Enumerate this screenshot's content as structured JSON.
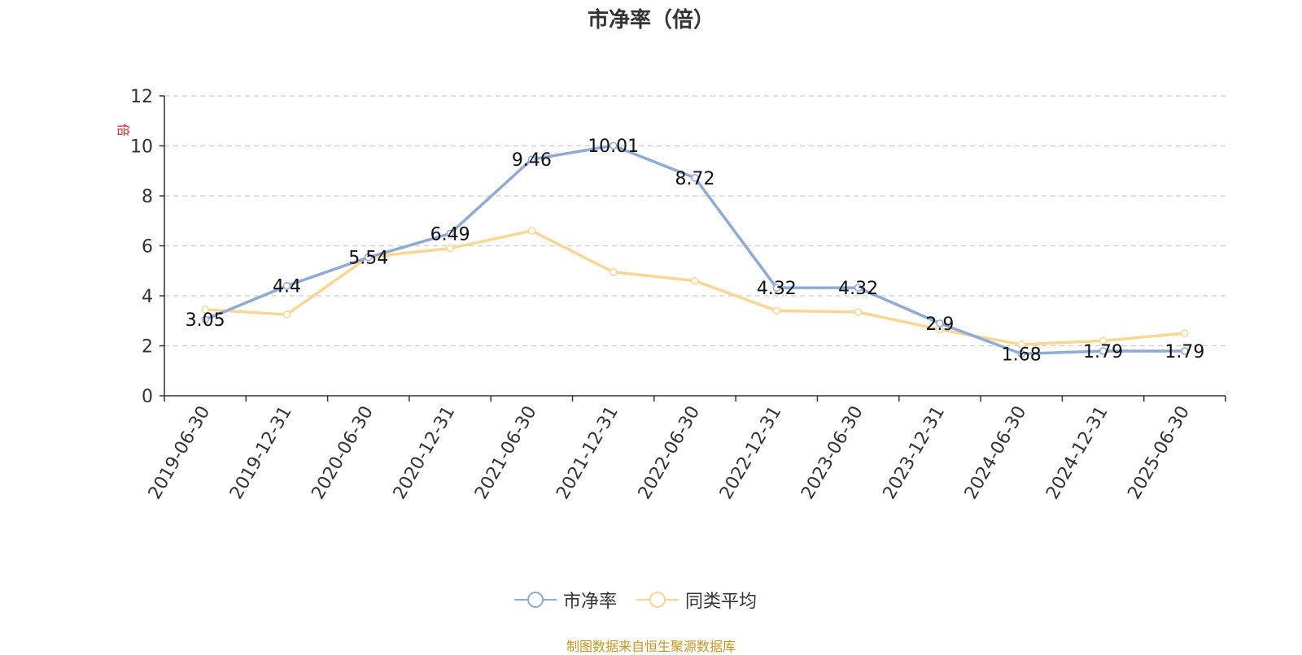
{
  "title": "市净率（倍）",
  "y_unit": "倍",
  "source": "制图数据来自恒生聚源数据库",
  "colors": {
    "series1": "#8eaad6",
    "series2": "#fad694",
    "grid": "#cccccc",
    "axis": "#333333",
    "unit": "#e02020"
  },
  "chart_data": {
    "type": "line",
    "title": "市净率（倍）",
    "ylabel": "倍",
    "xlabel": "",
    "ylim": [
      0,
      12
    ],
    "yticks": [
      0,
      2,
      4,
      6,
      8,
      10,
      12
    ],
    "grid": true,
    "legend_position": "bottom-center",
    "categories": [
      "2019-06-30",
      "2019-12-31",
      "2020-06-30",
      "2020-12-31",
      "2021-06-30",
      "2021-12-31",
      "2022-06-30",
      "2022-12-31",
      "2023-06-30",
      "2023-12-31",
      "2024-06-30",
      "2024-12-31",
      "2025-06-30"
    ],
    "series": [
      {
        "name": "市净率",
        "values": [
          3.05,
          4.4,
          5.54,
          6.49,
          9.46,
          10.01,
          8.72,
          4.32,
          4.32,
          2.9,
          1.68,
          1.79,
          1.79
        ],
        "labels": [
          "3.05",
          "4.4",
          "5.54",
          "6.49",
          "9.46",
          "10.01",
          "8.72",
          "4.32",
          "4.32",
          "2.9",
          "1.68",
          "1.79",
          "1.79"
        ]
      },
      {
        "name": "同类平均",
        "values": [
          3.45,
          3.25,
          5.55,
          5.9,
          6.6,
          4.95,
          4.6,
          3.4,
          3.35,
          2.65,
          2.05,
          2.2,
          2.5
        ]
      }
    ]
  }
}
